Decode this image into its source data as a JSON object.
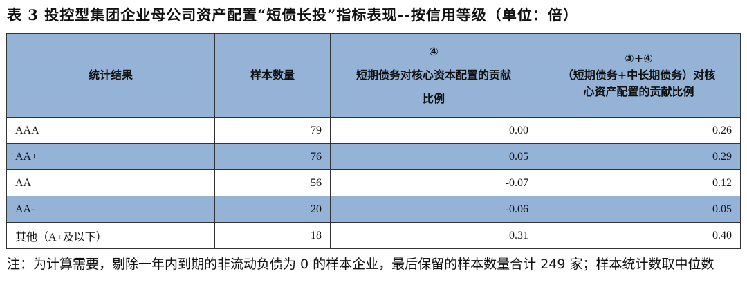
{
  "title": "表 3   投控型集团企业母公司资产配置“短债长投”指标表现--按信用等级（单位：倍）",
  "table": {
    "headers": [
      "统计结果",
      "样本数量",
      "④\n短期债务对核心资本配置的贡献\n比例",
      "③+④\n（短期债务+中长期债务）对核\n心资产配置的贡献比例"
    ],
    "rows": [
      [
        "AAA",
        "79",
        "0.00",
        "0.26"
      ],
      [
        "AA+",
        "76",
        "0.05",
        "0.29"
      ],
      [
        "AA",
        "56",
        "-0.07",
        "0.12"
      ],
      [
        "AA-",
        "20",
        "-0.06",
        "0.05"
      ],
      [
        "其他（A+及以下）",
        "18",
        "0.31",
        "0.40"
      ]
    ],
    "header_color": "#95B3D7"
  },
  "note": "注：为计算需要，剔除一年内到期的非流动负债为 0 的样本企业，最后保留的样本数量合计 249 家；样本统计数取中位数"
}
